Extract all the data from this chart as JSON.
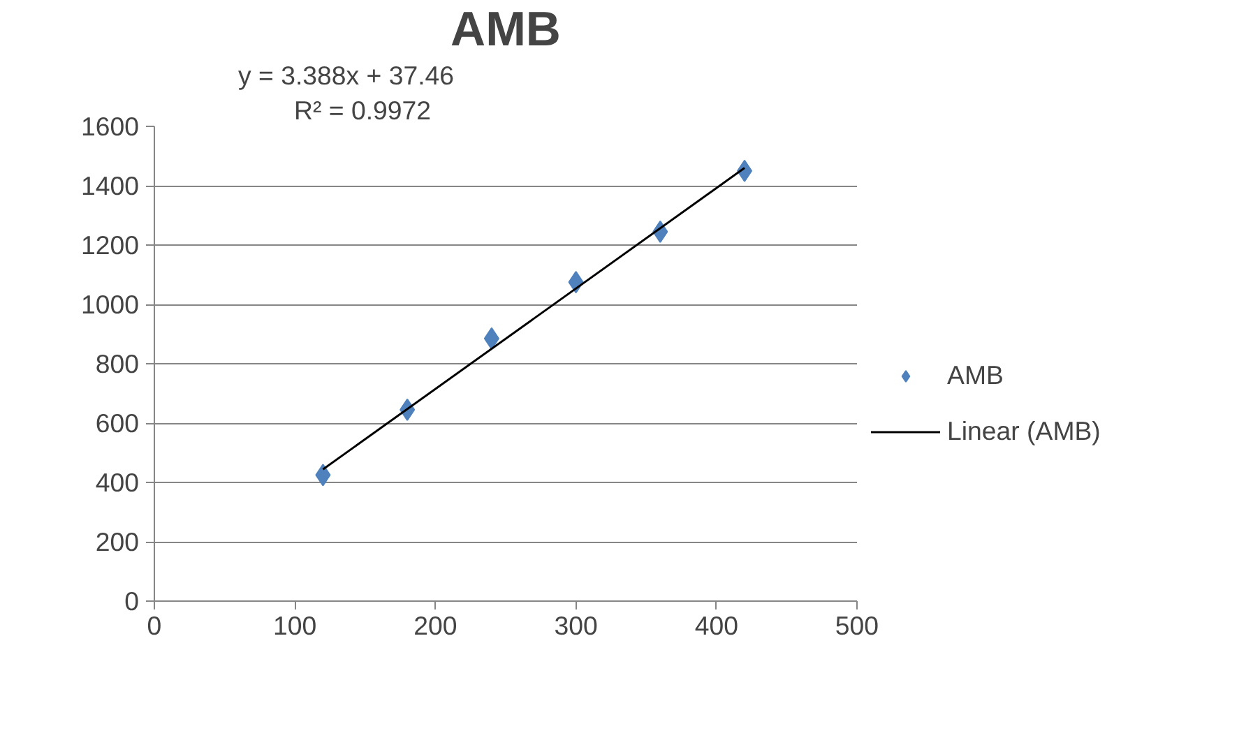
{
  "chart_data": {
    "type": "scatter",
    "title": "AMB",
    "annotations": [
      "y = 3.388x + 37.46",
      "R² = 0.9972"
    ],
    "xlim": [
      0,
      500
    ],
    "xticks": [
      0,
      100,
      200,
      300,
      400,
      500
    ],
    "ylim": [
      0,
      1600
    ],
    "yticks": [
      0,
      200,
      400,
      600,
      800,
      1000,
      1200,
      1400,
      1600
    ],
    "grid": "y",
    "legend": "right",
    "marker": "diamond",
    "series": [
      {
        "name": "AMB",
        "color": "#4f81bd",
        "x": [
          120,
          180,
          240,
          300,
          360,
          420
        ],
        "values": [
          425,
          645,
          885,
          1075,
          1245,
          1450
        ]
      },
      {
        "name": "Linear (AMB)",
        "type": "line",
        "marker": "none",
        "color": "#000000",
        "x": [
          120,
          420
        ],
        "values": [
          444,
          1460
        ]
      }
    ]
  }
}
